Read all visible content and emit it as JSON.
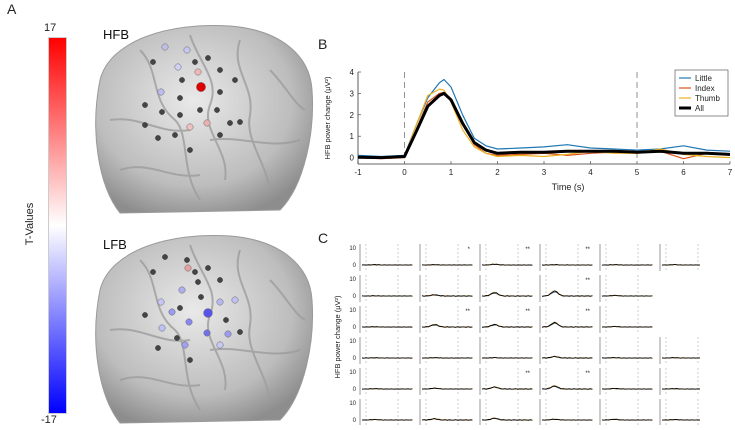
{
  "panels": {
    "a": "A",
    "b": "B",
    "c": "C"
  },
  "colorbar": {
    "title": "T-Values",
    "max_label": "17",
    "min_label": "-17",
    "range": [
      -17,
      17
    ],
    "colors": [
      "#0000ff",
      "#ffffff",
      "#ff0000"
    ]
  },
  "brains": [
    {
      "label": "HFB",
      "electrodes": [
        {
          "c": "#bfbfe6"
        },
        {
          "c": "#c6c6f0"
        },
        {
          "c": "#444"
        },
        {
          "c": "#444"
        },
        {
          "c": "#d0d0f5"
        },
        {
          "c": "#444"
        },
        {
          "c": "#f2b5b5"
        },
        {
          "c": "#444"
        },
        {
          "c": "#bcbcf0"
        },
        {
          "c": "#444"
        },
        {
          "c": "#e00000"
        },
        {
          "c": "#444"
        },
        {
          "c": "#444"
        },
        {
          "c": "#444"
        },
        {
          "c": "#444"
        },
        {
          "c": "#444"
        },
        {
          "c": "#444"
        },
        {
          "c": "#444"
        },
        {
          "c": "#444"
        },
        {
          "c": "#f0c0c0"
        },
        {
          "c": "#444"
        },
        {
          "c": "#444"
        },
        {
          "c": "#eab0b0"
        },
        {
          "c": "#444"
        },
        {
          "c": "#444"
        },
        {
          "c": "#444"
        },
        {
          "c": "#444"
        },
        {
          "c": "#444"
        }
      ]
    },
    {
      "label": "LFB",
      "electrodes": [
        {
          "c": "#444"
        },
        {
          "c": "#444"
        },
        {
          "c": "#444"
        },
        {
          "c": "#444"
        },
        {
          "c": "#e8a0a0"
        },
        {
          "c": "#444"
        },
        {
          "c": "#444"
        },
        {
          "c": "#444"
        },
        {
          "c": "#c6c6f5"
        },
        {
          "c": "#aeaef0"
        },
        {
          "c": "#444"
        },
        {
          "c": "#b8b8f0"
        },
        {
          "c": "#9a9af0"
        },
        {
          "c": "#5555e8"
        },
        {
          "c": "#c0c0f5"
        },
        {
          "c": "#444"
        },
        {
          "c": "#444"
        },
        {
          "c": "#8888ee"
        },
        {
          "c": "#c0c0f5"
        },
        {
          "c": "#444"
        },
        {
          "c": "#444"
        },
        {
          "c": "#7070ea"
        },
        {
          "c": "#9b9bf0"
        },
        {
          "c": "#a0a0f0"
        },
        {
          "c": "#c8c8f5"
        },
        {
          "c": "#444"
        },
        {
          "c": "#444"
        },
        {
          "c": "#444"
        }
      ]
    }
  ],
  "chart_data": [
    {
      "type": "line",
      "panel": "B",
      "xlabel": "Time (s)",
      "ylabel": "HFB power change (μV²)",
      "xlim": [
        -1,
        7
      ],
      "ylim": [
        -0.3,
        4
      ],
      "xticks": [
        -1,
        0,
        1,
        2,
        3,
        4,
        5,
        6,
        7
      ],
      "yticks": [
        0,
        1,
        2,
        3,
        4
      ],
      "vlines": [
        0,
        5
      ],
      "legend_position": "top-right",
      "x": [
        -1,
        -0.5,
        0,
        0.25,
        0.5,
        0.75,
        0.85,
        1.0,
        1.25,
        1.5,
        1.75,
        2.0,
        2.5,
        3.0,
        3.5,
        4.0,
        4.5,
        5.0,
        5.5,
        6.0,
        6.5,
        7.0
      ],
      "series": [
        {
          "name": "Little",
          "color": "#1f77b4",
          "width": 1.2,
          "values": [
            0.1,
            0.05,
            0.1,
            1.5,
            2.8,
            3.5,
            3.65,
            3.3,
            2.0,
            0.9,
            0.55,
            0.4,
            0.45,
            0.5,
            0.6,
            0.45,
            0.4,
            0.35,
            0.4,
            0.55,
            0.35,
            0.3
          ]
        },
        {
          "name": "Index",
          "color": "#d95319",
          "width": 1.2,
          "values": [
            0.0,
            -0.05,
            0.0,
            1.3,
            2.6,
            3.0,
            3.05,
            2.7,
            1.6,
            0.6,
            0.2,
            0.1,
            0.15,
            0.2,
            0.1,
            0.2,
            0.25,
            0.2,
            0.3,
            -0.05,
            0.2,
            0.1
          ]
        },
        {
          "name": "Thumb",
          "color": "#edb120",
          "width": 1.2,
          "values": [
            0.0,
            0.0,
            0.05,
            1.5,
            2.9,
            3.2,
            3.15,
            2.6,
            1.3,
            0.5,
            0.2,
            0.05,
            0.1,
            0.05,
            0.15,
            0.3,
            0.2,
            0.2,
            0.4,
            0.15,
            0.05,
            0.0
          ]
        },
        {
          "name": "All",
          "color": "#000000",
          "width": 3,
          "values": [
            0.02,
            0.0,
            0.05,
            1.2,
            2.4,
            2.9,
            3.0,
            2.7,
            1.6,
            0.7,
            0.35,
            0.2,
            0.25,
            0.25,
            0.3,
            0.3,
            0.3,
            0.25,
            0.3,
            0.2,
            0.2,
            0.15
          ]
        }
      ]
    },
    {
      "type": "line",
      "panel": "C",
      "ylabel": "HFB power change (μV²)",
      "ytick_labels": [
        "10",
        "0"
      ],
      "significance": [
        "*",
        "**",
        "**",
        "**",
        "**",
        "**",
        "**",
        "**"
      ],
      "grid_rows": [
        {
          "cells": [
            {
              "amp": 0.3,
              "sig": ""
            },
            {
              "amp": 0.3,
              "sig": "*"
            },
            {
              "amp": 0.8,
              "sig": "**"
            },
            {
              "amp": 0.3,
              "sig": "**"
            },
            {
              "amp": 0.3,
              "sig": ""
            },
            {
              "amp": 0.4,
              "sig": ""
            }
          ]
        },
        {
          "cells": [
            {
              "amp": 0.2,
              "sig": ""
            },
            {
              "amp": 1.2,
              "sig": ""
            },
            {
              "amp": 3.5,
              "sig": ""
            },
            {
              "amp": 5.0,
              "sig": "**"
            },
            {
              "amp": 0.6,
              "sig": ""
            }
          ]
        },
        {
          "cells": [
            {
              "amp": 0.2,
              "sig": ""
            },
            {
              "amp": 2.5,
              "sig": "**"
            },
            {
              "amp": 2.5,
              "sig": "**"
            },
            {
              "amp": 4.5,
              "sig": "**"
            },
            {
              "amp": 0.5,
              "sig": ""
            }
          ]
        },
        {
          "cells": [
            {
              "amp": 0.2,
              "sig": ""
            },
            {
              "amp": 0.3,
              "sig": ""
            },
            {
              "amp": 0.4,
              "sig": ""
            },
            {
              "amp": 1.5,
              "sig": ""
            },
            {
              "amp": 0.3,
              "sig": ""
            },
            {
              "amp": 0.3,
              "sig": ""
            }
          ]
        },
        {
          "cells": [
            {
              "amp": 0.3,
              "sig": ""
            },
            {
              "amp": 0.8,
              "sig": ""
            },
            {
              "amp": 2.0,
              "sig": "**"
            },
            {
              "amp": 3.0,
              "sig": "**"
            },
            {
              "amp": 0.5,
              "sig": ""
            },
            {
              "amp": 0.3,
              "sig": ""
            }
          ]
        },
        {
          "cells": [
            {
              "amp": 0.5,
              "sig": ""
            },
            {
              "amp": 1.2,
              "sig": ""
            },
            {
              "amp": 1.8,
              "sig": ""
            },
            {
              "amp": 0.8,
              "sig": ""
            },
            {
              "amp": 0.7,
              "sig": ""
            },
            {
              "amp": 0.4,
              "sig": ""
            }
          ]
        }
      ]
    }
  ]
}
